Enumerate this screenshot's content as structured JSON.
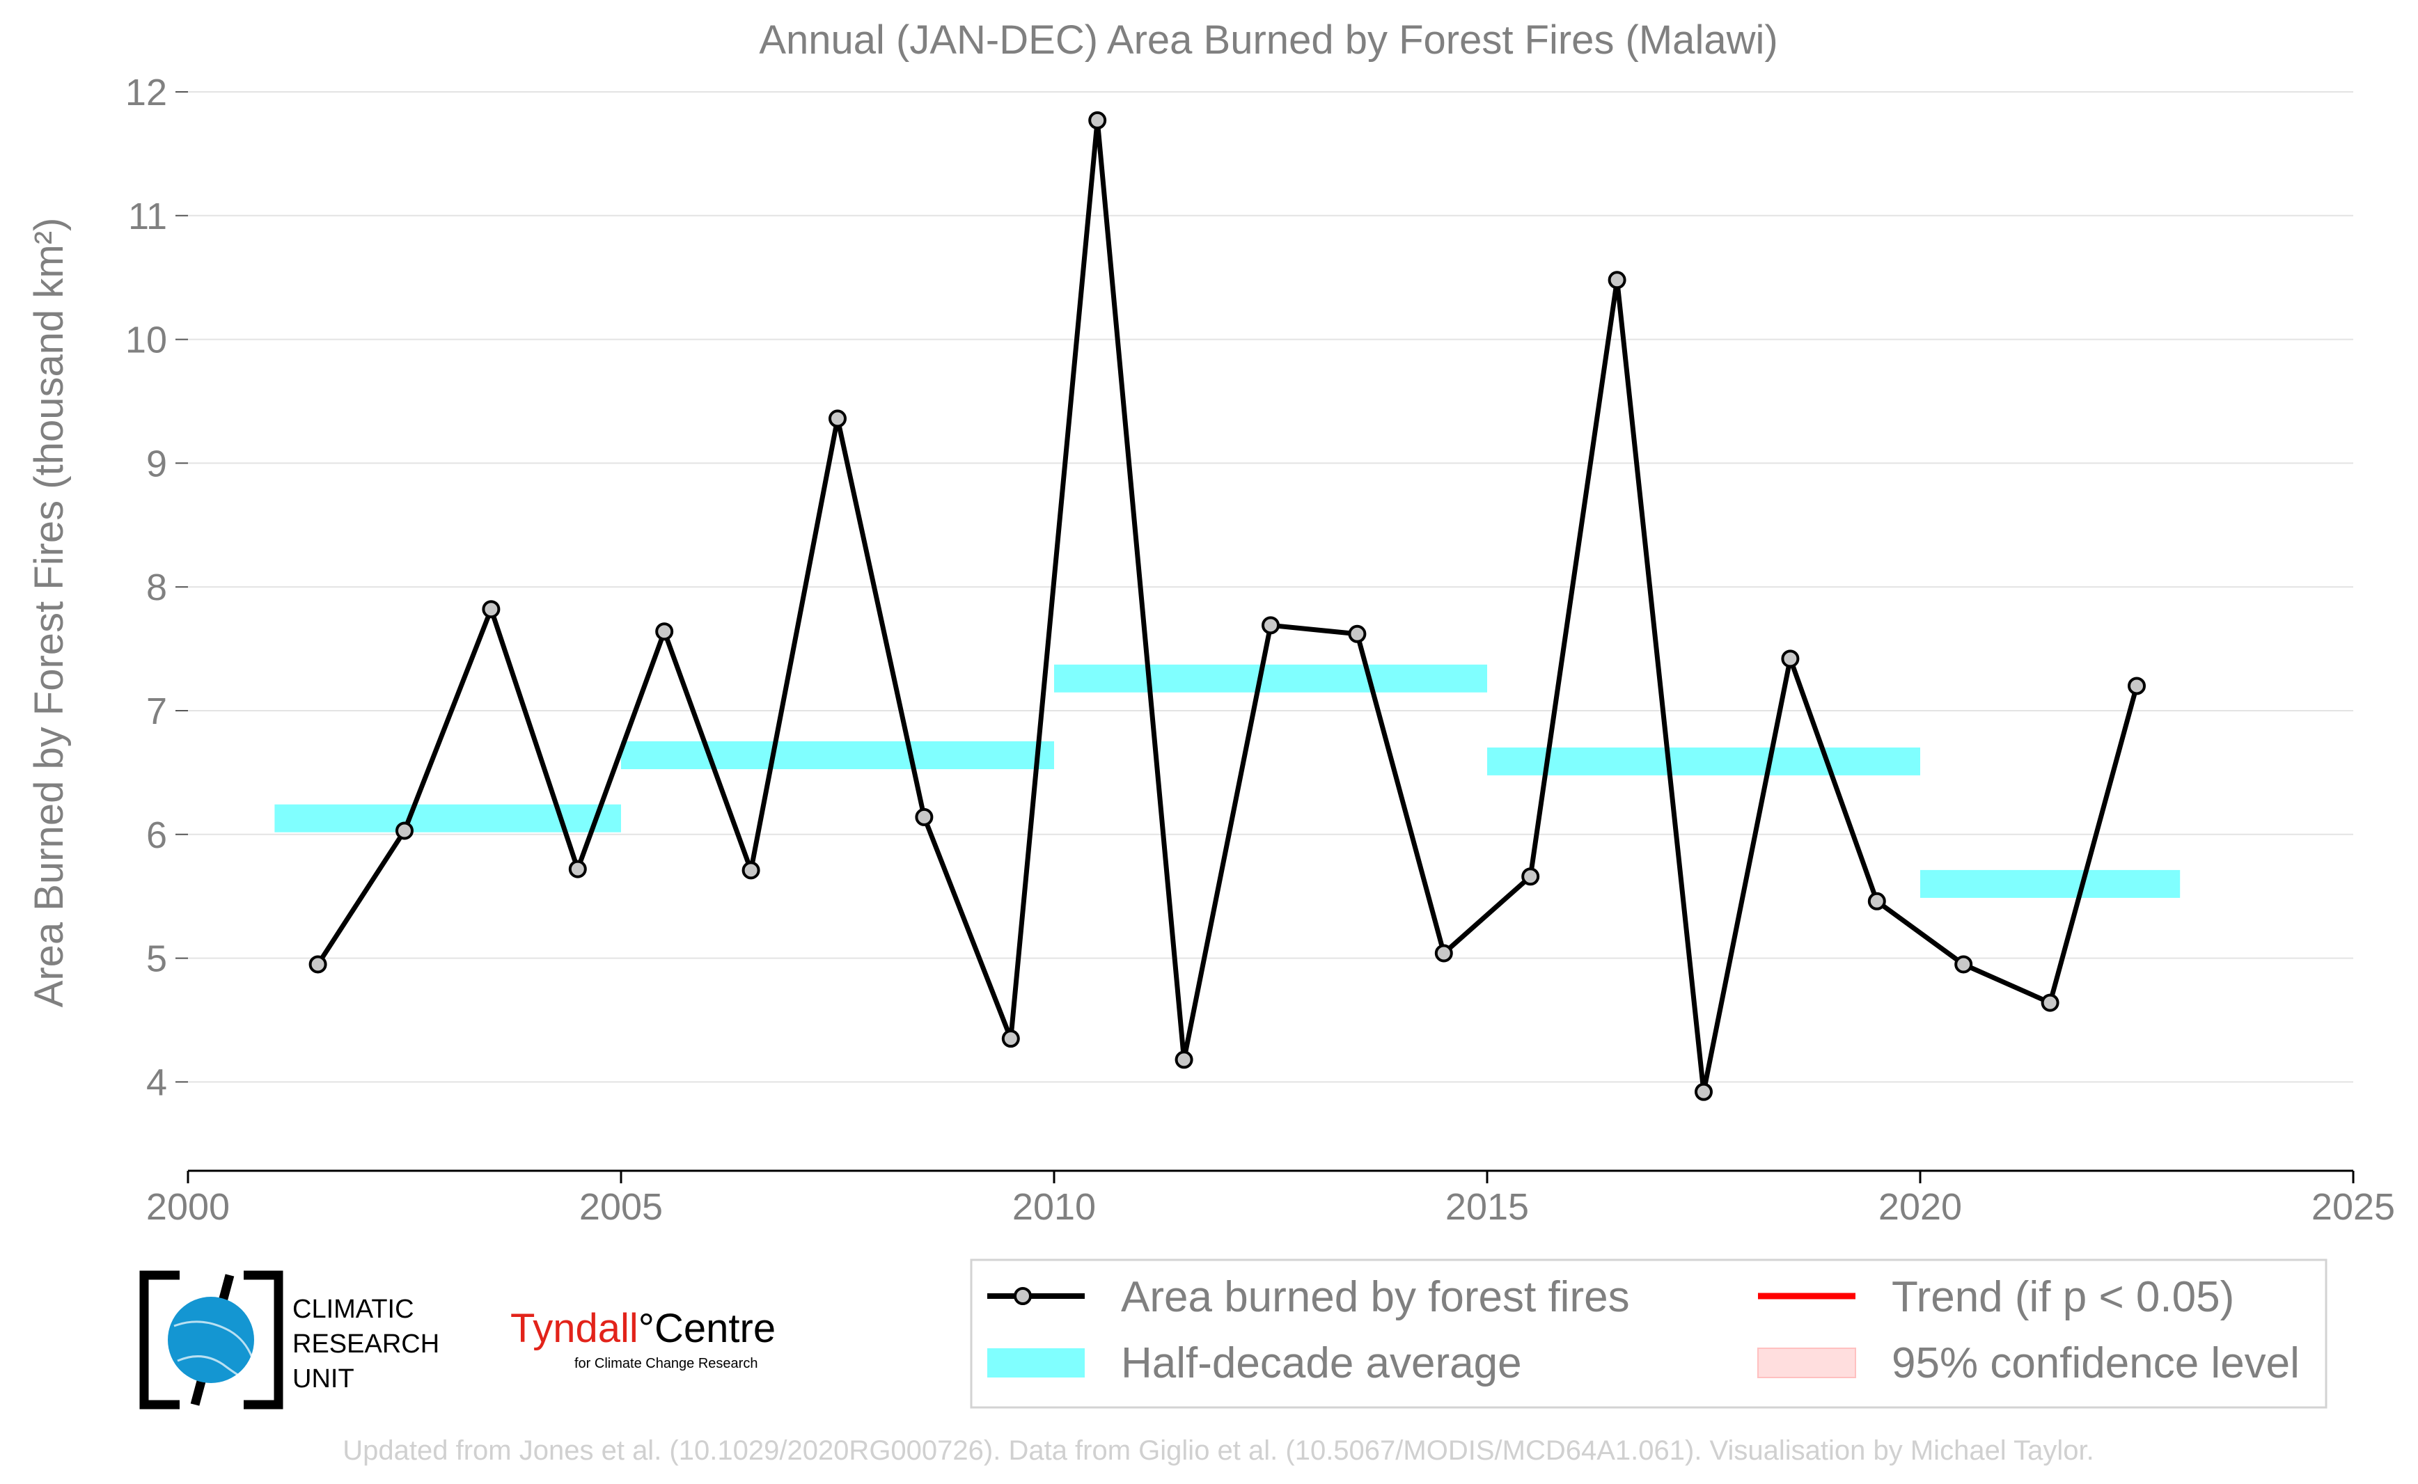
{
  "chart_data": {
    "type": "line",
    "title": "Annual (JAN-DEC) Area Burned by Forest Fires (Malawi)",
    "ylabel": "Area Burned by Forest Fires (thousand km²)",
    "xlabel": "",
    "xlim": [
      2000,
      2025
    ],
    "ylim": [
      3.3,
      12.1
    ],
    "xticks": [
      2000,
      2005,
      2010,
      2015,
      2020,
      2025
    ],
    "yticks": [
      4,
      5,
      6,
      7,
      8,
      9,
      10,
      11,
      12
    ],
    "grid": "horizontal",
    "legend_placement": "bottom-right",
    "colors": {
      "line": "#000000",
      "marker_fill": "#c8c8c8",
      "half_decade": "#80ffff",
      "trend": "#ff0000",
      "confidence": "#ffdede"
    },
    "series": [
      {
        "name": "Area burned by forest fires",
        "x": [
          2001.5,
          2002.5,
          2003.5,
          2004.5,
          2005.5,
          2006.5,
          2007.5,
          2008.5,
          2009.5,
          2010.5,
          2011.5,
          2012.5,
          2013.5,
          2014.5,
          2015.5,
          2016.5,
          2017.5,
          2018.5,
          2019.5,
          2020.5,
          2021.5,
          2022.5
        ],
        "values": [
          4.95,
          6.03,
          7.82,
          5.72,
          7.64,
          5.71,
          9.36,
          6.14,
          4.35,
          11.77,
          4.18,
          7.69,
          7.62,
          5.04,
          5.66,
          10.48,
          3.92,
          7.42,
          5.46,
          4.95,
          4.64,
          7.2
        ]
      }
    ],
    "half_decade_averages": [
      {
        "start": 2001,
        "end": 2005,
        "value": 6.13
      },
      {
        "start": 2005,
        "end": 2010,
        "value": 6.64
      },
      {
        "start": 2010,
        "end": 2015,
        "value": 7.26
      },
      {
        "start": 2015,
        "end": 2020,
        "value": 6.59
      },
      {
        "start": 2020,
        "end": 2023,
        "value": 5.6
      }
    ],
    "legend": [
      {
        "key": "line",
        "label": "Area burned by forest fires"
      },
      {
        "key": "trend",
        "label": "Trend (if p < 0.05)"
      },
      {
        "key": "band",
        "label": "Half-decade average"
      },
      {
        "key": "confidence",
        "label": "95% confidence level"
      }
    ]
  },
  "logos": {
    "cru_lines": [
      "CLIMATIC",
      "RESEARCH",
      "UNIT"
    ],
    "tyndall_name": "Tyndall",
    "tyndall_degree": "°",
    "tyndall_centre": "Centre",
    "tyndall_sub": "for Climate Change Research"
  },
  "source": "Updated from Jones et al. (10.1029/2020RG000726). Data from Giglio et al. (10.5067/MODIS/MCD64A1.061). Visualisation by Michael Taylor."
}
